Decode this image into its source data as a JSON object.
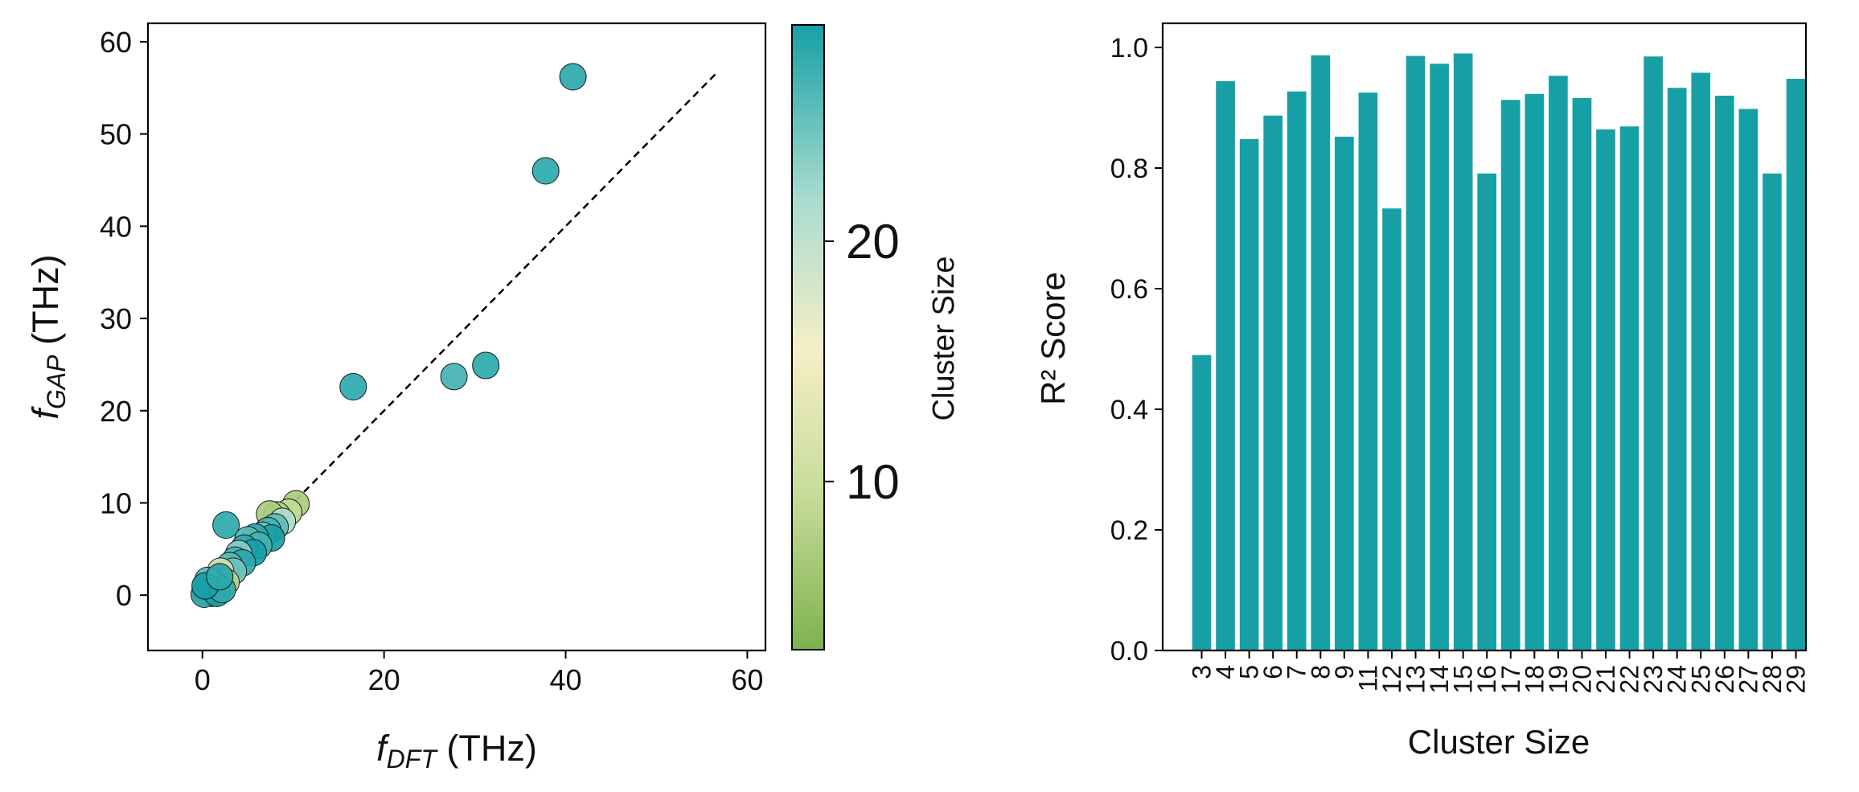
{
  "colors": {
    "teal": "#16a0a6",
    "scatter_edge": "#1a1a1a",
    "axis": "#000000",
    "colormap": [
      "#7db24e",
      "#c7dc9a",
      "#f6eec7",
      "#a9dccf",
      "#16a0a6"
    ]
  },
  "chart_data": [
    {
      "type": "scatter",
      "xlabel": {
        "base": "f",
        "sub": "DFT",
        "unit": " (THz)"
      },
      "ylabel": {
        "base": "f",
        "sub": "GAP",
        "unit": " (THz)"
      },
      "xlim": [
        -6,
        62
      ],
      "ylim": [
        -6,
        62
      ],
      "xticks": [
        0,
        20,
        40,
        60
      ],
      "yticks": [
        0,
        10,
        20,
        30,
        40,
        50,
        60
      ],
      "reference_line": {
        "from": [
          0,
          0
        ],
        "to": [
          56.5,
          56.5
        ],
        "style": "dashed"
      },
      "colorbar": {
        "label": "Cluster Size",
        "range": [
          3,
          29
        ],
        "ticks": [
          10,
          20
        ]
      },
      "points": [
        {
          "x": 40.8,
          "y": 56.2,
          "size": 28
        },
        {
          "x": 37.8,
          "y": 46.0,
          "size": 28
        },
        {
          "x": 31.2,
          "y": 24.9,
          "size": 28
        },
        {
          "x": 27.7,
          "y": 23.7,
          "size": 27
        },
        {
          "x": 16.6,
          "y": 22.6,
          "size": 28
        },
        {
          "x": 2.6,
          "y": 7.6,
          "size": 28
        },
        {
          "x": 10.3,
          "y": 9.9,
          "size": 7
        },
        {
          "x": 9.5,
          "y": 9.0,
          "size": 9
        },
        {
          "x": 8.2,
          "y": 8.7,
          "size": 8
        },
        {
          "x": 7.4,
          "y": 8.8,
          "size": 7
        },
        {
          "x": 8.8,
          "y": 8.0,
          "size": 22
        },
        {
          "x": 8.0,
          "y": 7.4,
          "size": 26
        },
        {
          "x": 7.2,
          "y": 7.0,
          "size": 27
        },
        {
          "x": 6.6,
          "y": 6.5,
          "size": 25
        },
        {
          "x": 7.6,
          "y": 6.2,
          "size": 29
        },
        {
          "x": 5.8,
          "y": 6.3,
          "size": 28
        },
        {
          "x": 5.0,
          "y": 6.0,
          "size": 26
        },
        {
          "x": 6.2,
          "y": 5.4,
          "size": 27
        },
        {
          "x": 4.6,
          "y": 5.1,
          "size": 28
        },
        {
          "x": 5.6,
          "y": 4.6,
          "size": 29
        },
        {
          "x": 4.0,
          "y": 4.5,
          "size": 24
        },
        {
          "x": 3.6,
          "y": 3.8,
          "size": 27
        },
        {
          "x": 4.4,
          "y": 3.5,
          "size": 28
        },
        {
          "x": 3.0,
          "y": 3.2,
          "size": 26
        },
        {
          "x": 2.6,
          "y": 2.4,
          "size": 29
        },
        {
          "x": 3.4,
          "y": 2.6,
          "size": 25
        },
        {
          "x": 2.0,
          "y": 2.6,
          "size": 12
        },
        {
          "x": 1.8,
          "y": 1.8,
          "size": 27
        },
        {
          "x": 2.6,
          "y": 1.4,
          "size": 8
        },
        {
          "x": 1.2,
          "y": 1.4,
          "size": 28
        },
        {
          "x": 1.5,
          "y": 0.9,
          "size": 26
        },
        {
          "x": 0.8,
          "y": 0.8,
          "size": 29
        },
        {
          "x": 1.0,
          "y": 0.2,
          "size": 27
        },
        {
          "x": 0.4,
          "y": 0.4,
          "size": 25
        },
        {
          "x": 0.2,
          "y": 0.1,
          "size": 28
        },
        {
          "x": 1.6,
          "y": 0.2,
          "size": 29
        },
        {
          "x": 0.6,
          "y": 1.6,
          "size": 26
        },
        {
          "x": 2.2,
          "y": 0.6,
          "size": 28
        },
        {
          "x": 0.3,
          "y": 1.0,
          "size": 29
        },
        {
          "x": 1.9,
          "y": 2.0,
          "size": 28
        }
      ]
    },
    {
      "type": "bar",
      "xlabel": "Cluster Size",
      "ylabel": "R² Score",
      "ylim": [
        0,
        1.04
      ],
      "yticks": [
        "0.0",
        "0.2",
        "0.4",
        "0.6",
        "0.8",
        "1.0"
      ],
      "categories": [
        "3",
        "4",
        "5",
        "6",
        "7",
        "8",
        "9",
        "11",
        "12",
        "13",
        "14",
        "15",
        "16",
        "17",
        "18",
        "19",
        "20",
        "21",
        "22",
        "23",
        "24",
        "25",
        "26",
        "27",
        "28",
        "29"
      ],
      "values": [
        0.49,
        0.944,
        0.848,
        0.887,
        0.927,
        0.987,
        0.852,
        0.925,
        0.733,
        0.986,
        0.973,
        0.99,
        0.791,
        0.913,
        0.923,
        0.953,
        0.916,
        0.864,
        0.869,
        0.985,
        0.933,
        0.958,
        0.92,
        0.898,
        0.791,
        0.948
      ]
    }
  ]
}
